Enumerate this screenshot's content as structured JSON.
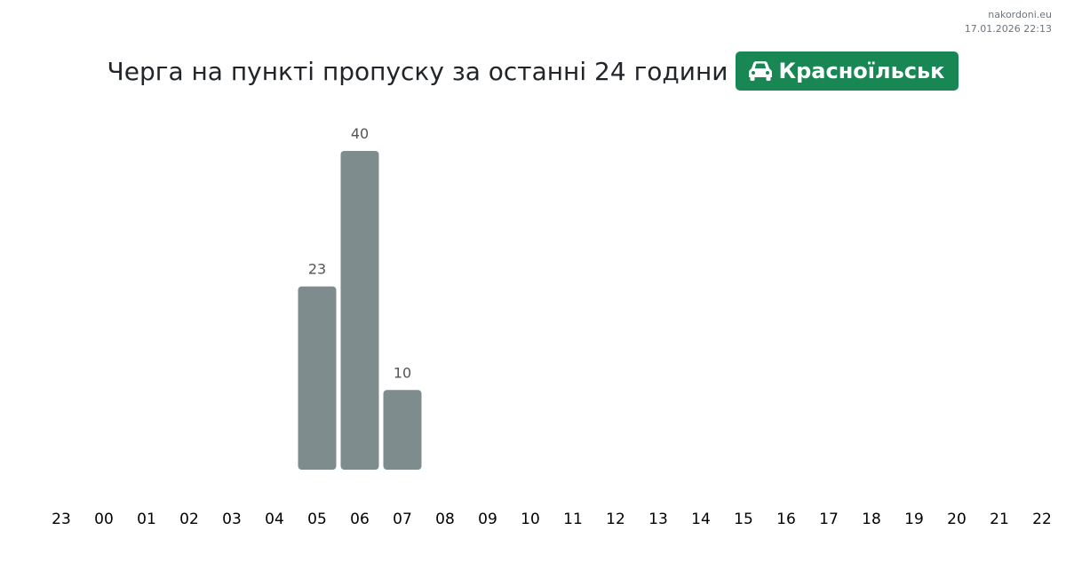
{
  "watermark": {
    "site": "nakordoni.eu",
    "timestamp": "17.01.2026 22:13"
  },
  "header": {
    "title": "Черга на пункті пропуску за останні 24 години",
    "checkpoint": "Красноїльськ",
    "checkpoint_icon": "car-icon",
    "badge_color": "#198754"
  },
  "chart_data": {
    "type": "bar",
    "bar_color": "#7f8c8d",
    "categories": [
      "23",
      "00",
      "01",
      "02",
      "03",
      "04",
      "05",
      "06",
      "07",
      "08",
      "09",
      "10",
      "11",
      "12",
      "13",
      "14",
      "15",
      "16",
      "17",
      "18",
      "19",
      "20",
      "21",
      "22"
    ],
    "values": [
      null,
      null,
      null,
      null,
      null,
      null,
      23,
      40,
      10,
      null,
      null,
      null,
      null,
      null,
      null,
      null,
      null,
      null,
      null,
      null,
      null,
      null,
      null,
      null
    ],
    "ylim": [
      0,
      40
    ],
    "grid": false
  }
}
